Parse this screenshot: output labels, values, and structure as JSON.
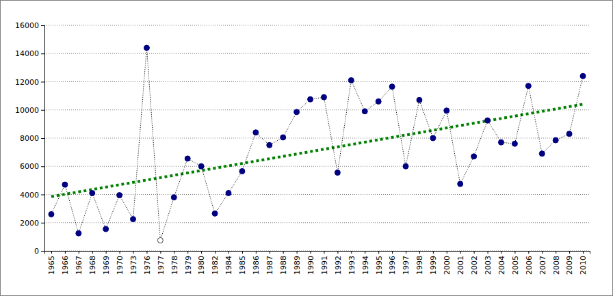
{
  "chart_data": {
    "type": "line",
    "categories": [
      "1965",
      "1966",
      "1967",
      "1968",
      "1969",
      "1970",
      "1973",
      "1976",
      "1977",
      "1978",
      "1979",
      "1980",
      "1982",
      "1984",
      "1985",
      "1986",
      "1987",
      "1988",
      "1989",
      "1990",
      "1991",
      "1992",
      "1993",
      "1994",
      "1995",
      "1996",
      "1997",
      "1998",
      "1999",
      "2000",
      "2001",
      "2002",
      "2003",
      "2004",
      "2005",
      "2006",
      "2007",
      "2008",
      "2009",
      "2010"
    ],
    "series": [
      {
        "color": "#000000",
        "marker": "circle",
        "line_style": "dotted",
        "values": [
          2600,
          4700,
          1250,
          4100,
          1550,
          3950,
          2250,
          14400,
          750,
          3800,
          6550,
          6000,
          2650,
          4100,
          5650,
          8400,
          7500,
          8050,
          9850,
          10750,
          10900,
          5550,
          12100,
          9900,
          10600,
          11650,
          6000,
          10700,
          8000,
          9950,
          4750,
          6700,
          9250,
          7700,
          7600,
          11700,
          6900,
          7850,
          8300,
          12400
        ],
        "colors": [
          "#000080",
          "#000080",
          "#000080",
          "#000080",
          "#000080",
          "#000080",
          "#000080",
          "#000080",
          "#ffffff",
          "#000080",
          "#000080",
          "#000080",
          "#000080",
          "#000080",
          "#000080",
          "#000080",
          "#000080",
          "#000080",
          "#000080",
          "#000080",
          "#000080",
          "#000080",
          "#000080",
          "#000080",
          "#000080",
          "#000080",
          "#000080",
          "#000080",
          "#000080",
          "#000080",
          "#000080",
          "#000080",
          "#000080",
          "#000080",
          "#000080",
          "#000080",
          "#000080",
          "#000080",
          "#000080",
          "#000080"
        ]
      },
      {
        "color": "#008000",
        "marker": "none",
        "line_style": "dotted",
        "x": [
          "1965",
          "2010"
        ],
        "values": [
          3850,
          10400
        ]
      }
    ],
    "ylim": [
      0,
      16000
    ],
    "yticks": [
      0,
      2000,
      4000,
      6000,
      8000,
      10000,
      12000,
      14000,
      16000
    ],
    "grid": true
  }
}
